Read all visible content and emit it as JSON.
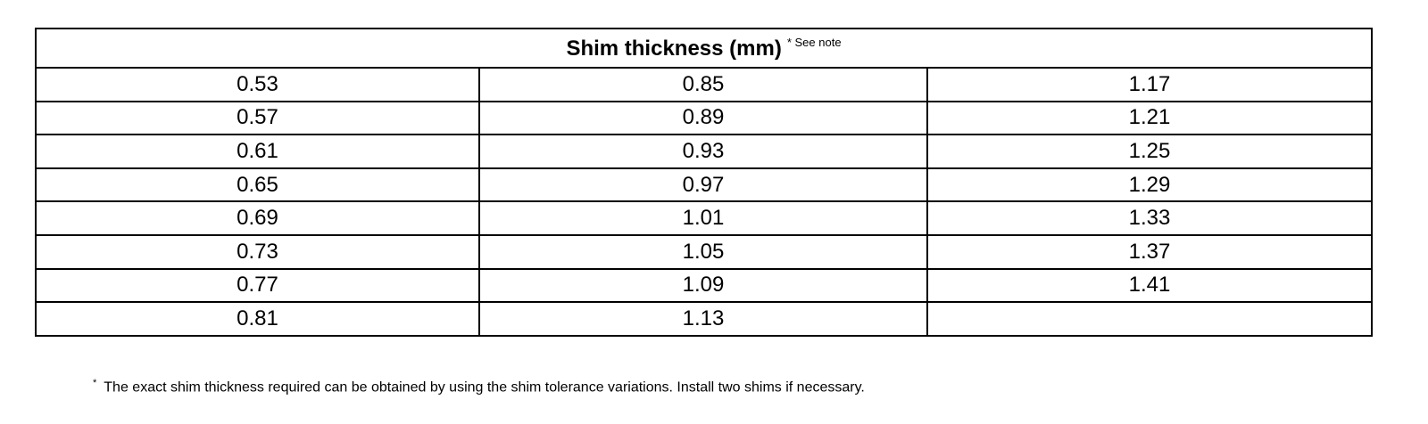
{
  "table": {
    "title": "Shim thickness (mm)",
    "title_note": "* See note",
    "rows": [
      [
        "0.53",
        "0.85",
        "1.17"
      ],
      [
        "0.57",
        "0.89",
        "1.21"
      ],
      [
        "0.61",
        "0.93",
        "1.25"
      ],
      [
        "0.65",
        "0.97",
        "1.29"
      ],
      [
        "0.69",
        "1.01",
        "1.33"
      ],
      [
        "0.73",
        "1.05",
        "1.37"
      ],
      [
        "0.77",
        "1.09",
        "1.41"
      ],
      [
        "0.81",
        "1.13"
      ]
    ]
  },
  "footnote": {
    "marker": "*",
    "text": "The exact shim thickness required can be obtained by using the shim tolerance variations. Install two shims if necessary."
  }
}
